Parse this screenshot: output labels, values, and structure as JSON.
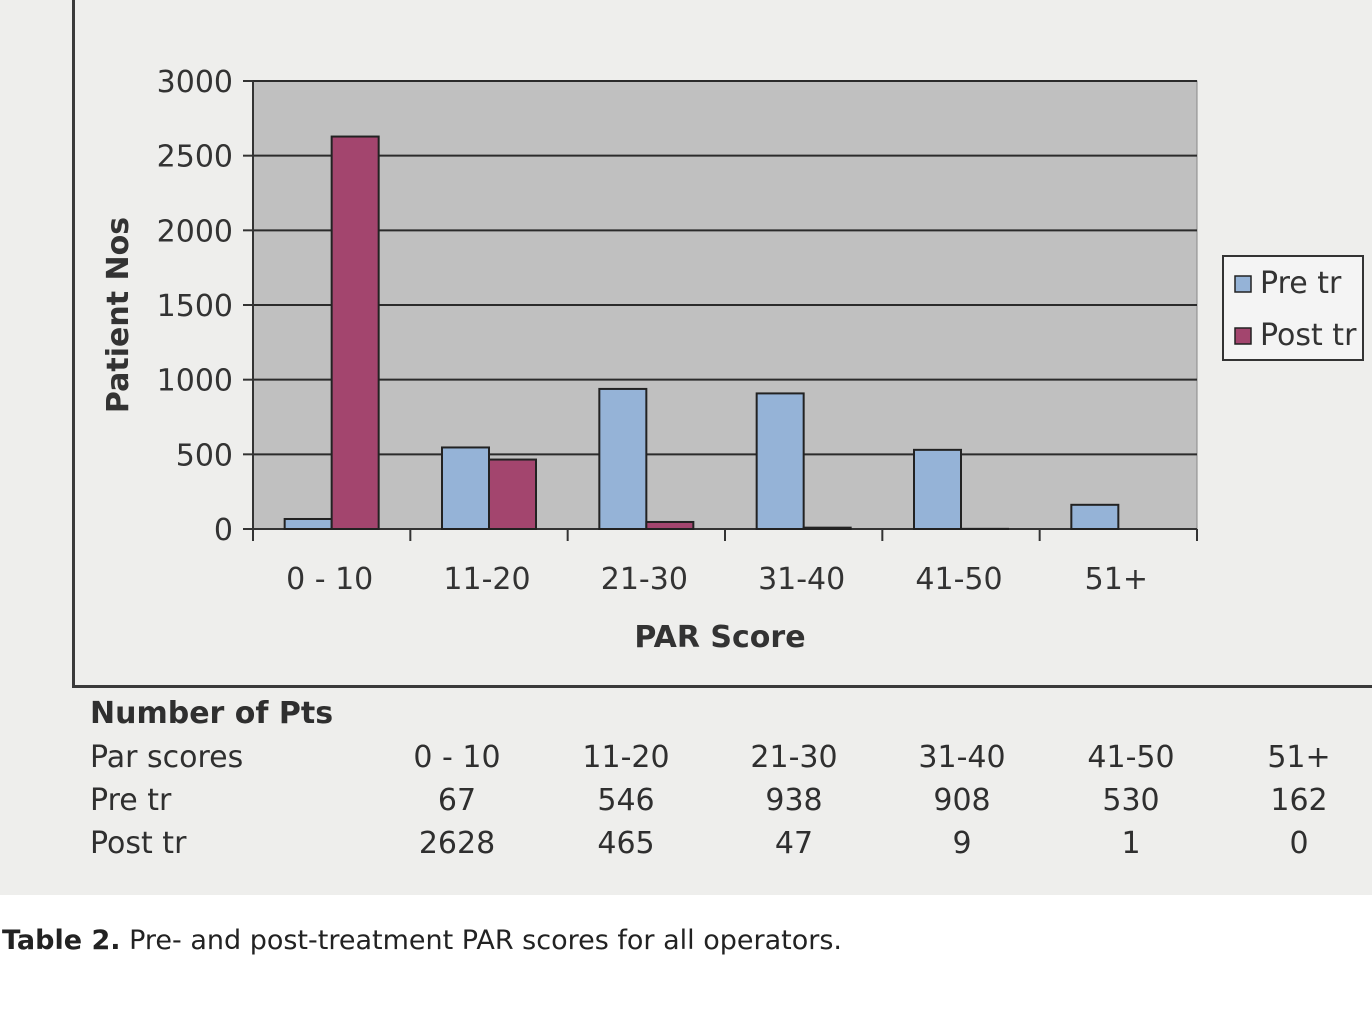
{
  "chart_data": {
    "type": "bar",
    "categories": [
      "0 - 10",
      "11-20",
      "21-30",
      "31-40",
      "41-50",
      "51+"
    ],
    "series": [
      {
        "name": "Pre tr",
        "values": [
          67,
          546,
          938,
          908,
          530,
          162
        ],
        "color": "#95b3d7"
      },
      {
        "name": "Post tr",
        "values": [
          2628,
          465,
          47,
          9,
          1,
          0
        ],
        "color": "#a3456e"
      }
    ],
    "xlabel": "PAR Score",
    "ylabel": "Patient Nos",
    "ylim": [
      0,
      3000
    ],
    "yticks": [
      0,
      500,
      1000,
      1500,
      2000,
      2500,
      3000
    ],
    "grid": true,
    "legend_position": "right",
    "plot_background": "#c0c0c0"
  },
  "table": {
    "heading": "Number of Pts",
    "rows": [
      {
        "label": "Par scores",
        "values": [
          "0 - 10",
          "11-20",
          "21-30",
          "31-40",
          "41-50",
          "51+"
        ]
      },
      {
        "label": "Pre tr",
        "values": [
          "67",
          "546",
          "938",
          "908",
          "530",
          "162"
        ]
      },
      {
        "label": "Post tr",
        "values": [
          "2628",
          "465",
          "47",
          "9",
          "1",
          "0"
        ]
      }
    ]
  },
  "caption": {
    "label": "Table 2.",
    "text": " Pre- and post-treatment PAR scores for all operators."
  }
}
